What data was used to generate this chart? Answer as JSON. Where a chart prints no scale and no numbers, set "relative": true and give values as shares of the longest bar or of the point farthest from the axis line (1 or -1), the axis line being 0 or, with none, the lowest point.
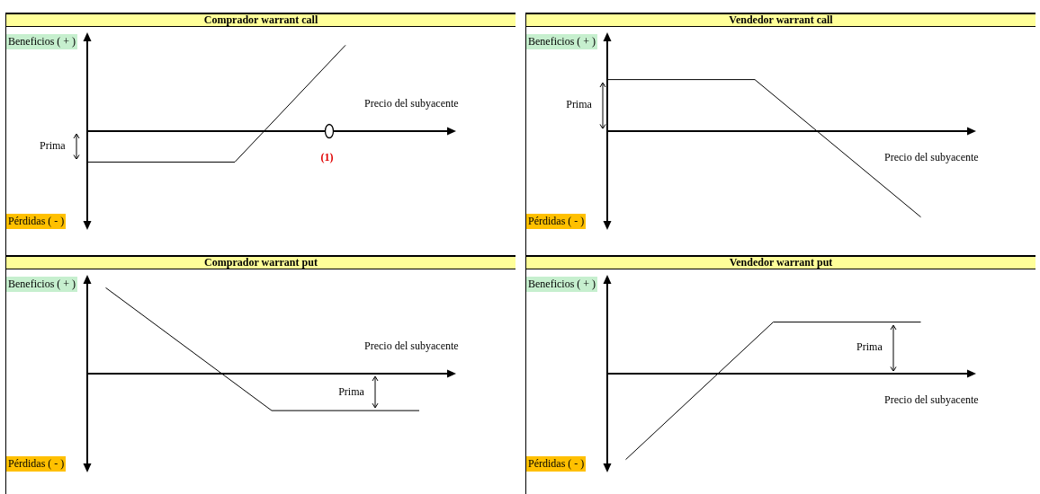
{
  "chart_data": [
    {
      "type": "line",
      "title": "Comprador warrant call",
      "xlabel": "Precio del subyacente",
      "relative": true,
      "legend": false,
      "tick_labels": false,
      "marker": "none",
      "line_style": "solid",
      "categories": [
        null,
        null,
        null,
        null,
        null,
        null,
        null,
        null,
        null,
        null,
        null,
        null,
        null,
        null,
        null,
        null,
        null,
        null,
        null,
        null,
        null
      ],
      "series": [
        {
          "color": "#000000",
          "values": [
            -0.36,
            null,
            null,
            null,
            null,
            null,
            null,
            null,
            -0.36,
            null,
            null,
            null,
            null,
            null,
            1,
            null,
            null,
            null,
            null,
            null,
            null
          ]
        }
      ],
      "annotations": [
        "Beneficios ( + )",
        "Pérdidas  ( - )",
        "Prima",
        "(1)"
      ]
    },
    {
      "type": "line",
      "title": "Vendedor warrant call",
      "xlabel": "Precio del subyacente",
      "relative": true,
      "legend": false,
      "tick_labels": false,
      "marker": "none",
      "line_style": "solid",
      "categories": [
        null,
        null,
        null,
        null,
        null,
        null,
        null,
        null,
        null,
        null,
        null,
        null,
        null,
        null,
        null,
        null,
        null,
        null,
        null,
        null,
        null
      ],
      "series": [
        {
          "color": "#000000",
          "values": [
            0.6,
            null,
            null,
            null,
            null,
            null,
            null,
            null,
            0.6,
            null,
            null,
            null,
            null,
            null,
            null,
            null,
            null,
            -1,
            null,
            null,
            null
          ]
        }
      ],
      "annotations": [
        "Beneficios ( + )",
        "Pérdidas  ( - )",
        "Prima"
      ]
    },
    {
      "type": "line",
      "title": "Comprador warrant put",
      "xlabel": "Precio del subyacente",
      "relative": true,
      "legend": false,
      "tick_labels": false,
      "marker": "none",
      "line_style": "solid",
      "categories": [
        null,
        null,
        null,
        null,
        null,
        null,
        null,
        null,
        null,
        null,
        null,
        null,
        null,
        null,
        null,
        null,
        null,
        null,
        null,
        null,
        null
      ],
      "series": [
        {
          "color": "#000000",
          "values": [
            null,
            1,
            null,
            null,
            null,
            null,
            null,
            null,
            null,
            null,
            -0.43,
            null,
            null,
            null,
            null,
            null,
            null,
            null,
            -0.43,
            null,
            null
          ]
        }
      ],
      "annotations": [
        "Beneficios ( + )",
        "Pérdidas  ( - )",
        "Prima"
      ]
    },
    {
      "type": "line",
      "title": "Vendedor warrant put",
      "xlabel": "Precio del subyacente",
      "relative": true,
      "legend": false,
      "tick_labels": false,
      "marker": "none",
      "line_style": "solid",
      "categories": [
        null,
        null,
        null,
        null,
        null,
        null,
        null,
        null,
        null,
        null,
        null,
        null,
        null,
        null,
        null,
        null,
        null,
        null,
        null,
        null,
        null
      ],
      "series": [
        {
          "color": "#000000",
          "values": [
            null,
            -1,
            null,
            null,
            null,
            null,
            null,
            null,
            null,
            0.6,
            null,
            null,
            null,
            null,
            null,
            null,
            null,
            0.6,
            null,
            null,
            null
          ]
        }
      ],
      "annotations": [
        "Beneficios ( + )",
        "Pérdidas  ( - )",
        "Prima"
      ]
    }
  ]
}
